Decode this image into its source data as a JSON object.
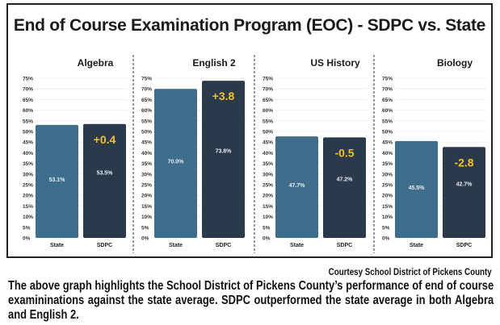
{
  "chart_data": {
    "type": "bar",
    "title": "End of Course Examination Program (EOC) - SDPC vs. State",
    "ylim": [
      0,
      75
    ],
    "yticks": [
      "0%",
      "5%",
      "10%",
      "15%",
      "20%",
      "25%",
      "30%",
      "35%",
      "40%",
      "45%",
      "50%",
      "55%",
      "60%",
      "65%",
      "70%",
      "75%"
    ],
    "grid": true,
    "legend": "none",
    "categories": [
      "State",
      "SDPC"
    ],
    "colors": {
      "State": "#3f6d8c",
      "SDPC": "#2b3a4a",
      "difference": "#f2c12e"
    },
    "panels": [
      {
        "title": "Algebra",
        "values": [
          53.1,
          53.5
        ],
        "labels": [
          "53.1%",
          "53.5%"
        ],
        "difference": "+0.4"
      },
      {
        "title": "English 2",
        "values": [
          70.0,
          73.8
        ],
        "labels": [
          "70.0%",
          "73.8%"
        ],
        "difference": "+3.8"
      },
      {
        "title": "US History",
        "values": [
          47.7,
          47.2
        ],
        "labels": [
          "47.7%",
          "47.2%"
        ],
        "difference": "-0.5"
      },
      {
        "title": "Biology",
        "values": [
          45.5,
          42.7
        ],
        "labels": [
          "45.5%",
          "42.7%"
        ],
        "difference": "-2.8"
      }
    ]
  },
  "credit": "Courtesy School District of Pickens County",
  "caption": "The above graph highlights the School District of Pickens County’s performance of end of course examininations against the state average. SDPC outperformed the state average in both Algebra and English 2."
}
